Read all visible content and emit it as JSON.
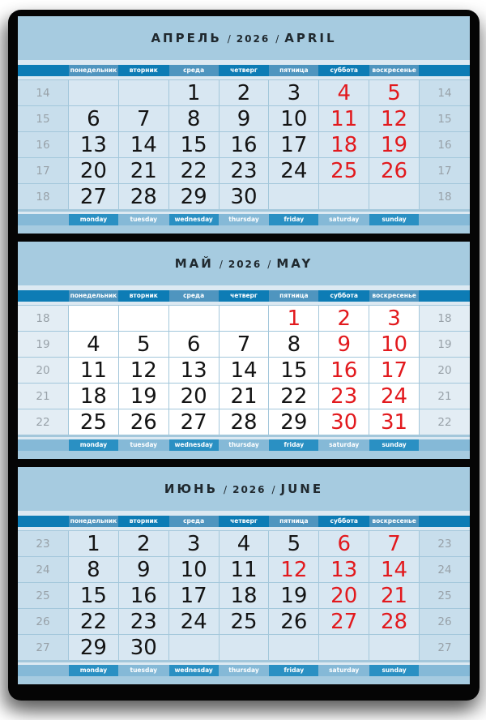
{
  "calendar": {
    "sep": "/",
    "day_names_ru": [
      "понедельник",
      "вторник",
      "среда",
      "четверг",
      "пятница",
      "суббота",
      "воскресенье"
    ],
    "day_names_en": [
      "monday",
      "tuesday",
      "wednesday",
      "thursday",
      "friday",
      "saturday",
      "sunday"
    ],
    "colors": {
      "header_blue": "#a6cbe0",
      "pale_strip": "#dce9f2",
      "bar_dark_top": "#0d7cb5",
      "bar_light_top": "#4f95bf",
      "bar_dark_bottom": "#2a90c3",
      "bar_light_bottom": "#85b9d7",
      "tinted_cell": "#d8e7f2",
      "white_cell": "#ffffff",
      "weekend_red": "#e2191d",
      "date_black": "#141414",
      "week_number_gray": "#98a1a8",
      "backing_black": "#050505"
    },
    "months": [
      {
        "name_ru": "АПРЕЛЬ",
        "year": "2026",
        "name_en": "APRIL",
        "cells_tinted": true,
        "weeks": [
          {
            "week": "14",
            "days": [
              null,
              null,
              {
                "d": "1"
              },
              {
                "d": "2"
              },
              {
                "d": "3"
              },
              {
                "d": "4",
                "red": true
              },
              {
                "d": "5",
                "red": true
              }
            ]
          },
          {
            "week": "15",
            "days": [
              {
                "d": "6"
              },
              {
                "d": "7"
              },
              {
                "d": "8"
              },
              {
                "d": "9"
              },
              {
                "d": "10"
              },
              {
                "d": "11",
                "red": true
              },
              {
                "d": "12",
                "red": true
              }
            ]
          },
          {
            "week": "16",
            "days": [
              {
                "d": "13"
              },
              {
                "d": "14"
              },
              {
                "d": "15"
              },
              {
                "d": "16"
              },
              {
                "d": "17"
              },
              {
                "d": "18",
                "red": true
              },
              {
                "d": "19",
                "red": true
              }
            ]
          },
          {
            "week": "17",
            "days": [
              {
                "d": "20"
              },
              {
                "d": "21"
              },
              {
                "d": "22"
              },
              {
                "d": "23"
              },
              {
                "d": "24"
              },
              {
                "d": "25",
                "red": true
              },
              {
                "d": "26",
                "red": true
              }
            ]
          },
          {
            "week": "18",
            "days": [
              {
                "d": "27"
              },
              {
                "d": "28"
              },
              {
                "d": "29"
              },
              {
                "d": "30"
              },
              null,
              null,
              null
            ]
          }
        ]
      },
      {
        "name_ru": "МАЙ",
        "year": "2026",
        "name_en": "MAY",
        "cells_tinted": false,
        "weeks": [
          {
            "week": "18",
            "days": [
              null,
              null,
              null,
              null,
              {
                "d": "1",
                "red": true
              },
              {
                "d": "2",
                "red": true
              },
              {
                "d": "3",
                "red": true
              }
            ]
          },
          {
            "week": "19",
            "days": [
              {
                "d": "4"
              },
              {
                "d": "5"
              },
              {
                "d": "6"
              },
              {
                "d": "7"
              },
              {
                "d": "8"
              },
              {
                "d": "9",
                "red": true
              },
              {
                "d": "10",
                "red": true
              }
            ]
          },
          {
            "week": "20",
            "days": [
              {
                "d": "11"
              },
              {
                "d": "12"
              },
              {
                "d": "13"
              },
              {
                "d": "14"
              },
              {
                "d": "15"
              },
              {
                "d": "16",
                "red": true
              },
              {
                "d": "17",
                "red": true
              }
            ]
          },
          {
            "week": "21",
            "days": [
              {
                "d": "18"
              },
              {
                "d": "19"
              },
              {
                "d": "20"
              },
              {
                "d": "21"
              },
              {
                "d": "22"
              },
              {
                "d": "23",
                "red": true
              },
              {
                "d": "24",
                "red": true
              }
            ]
          },
          {
            "week": "22",
            "days": [
              {
                "d": "25"
              },
              {
                "d": "26"
              },
              {
                "d": "27"
              },
              {
                "d": "28"
              },
              {
                "d": "29"
              },
              {
                "d": "30",
                "red": true
              },
              {
                "d": "31",
                "red": true
              }
            ]
          }
        ]
      },
      {
        "name_ru": "ИЮНЬ",
        "year": "2026",
        "name_en": "JUNE",
        "cells_tinted": true,
        "weeks": [
          {
            "week": "23",
            "days": [
              {
                "d": "1"
              },
              {
                "d": "2"
              },
              {
                "d": "3"
              },
              {
                "d": "4"
              },
              {
                "d": "5"
              },
              {
                "d": "6",
                "red": true
              },
              {
                "d": "7",
                "red": true
              }
            ]
          },
          {
            "week": "24",
            "days": [
              {
                "d": "8"
              },
              {
                "d": "9"
              },
              {
                "d": "10"
              },
              {
                "d": "11"
              },
              {
                "d": "12",
                "red": true
              },
              {
                "d": "13",
                "red": true
              },
              {
                "d": "14",
                "red": true
              }
            ]
          },
          {
            "week": "25",
            "days": [
              {
                "d": "15"
              },
              {
                "d": "16"
              },
              {
                "d": "17"
              },
              {
                "d": "18"
              },
              {
                "d": "19"
              },
              {
                "d": "20",
                "red": true
              },
              {
                "d": "21",
                "red": true
              }
            ]
          },
          {
            "week": "26",
            "days": [
              {
                "d": "22"
              },
              {
                "d": "23"
              },
              {
                "d": "24"
              },
              {
                "d": "25"
              },
              {
                "d": "26"
              },
              {
                "d": "27",
                "red": true
              },
              {
                "d": "28",
                "red": true
              }
            ]
          },
          {
            "week": "27",
            "days": [
              {
                "d": "29"
              },
              {
                "d": "30"
              },
              null,
              null,
              null,
              null,
              null
            ]
          }
        ]
      }
    ]
  }
}
